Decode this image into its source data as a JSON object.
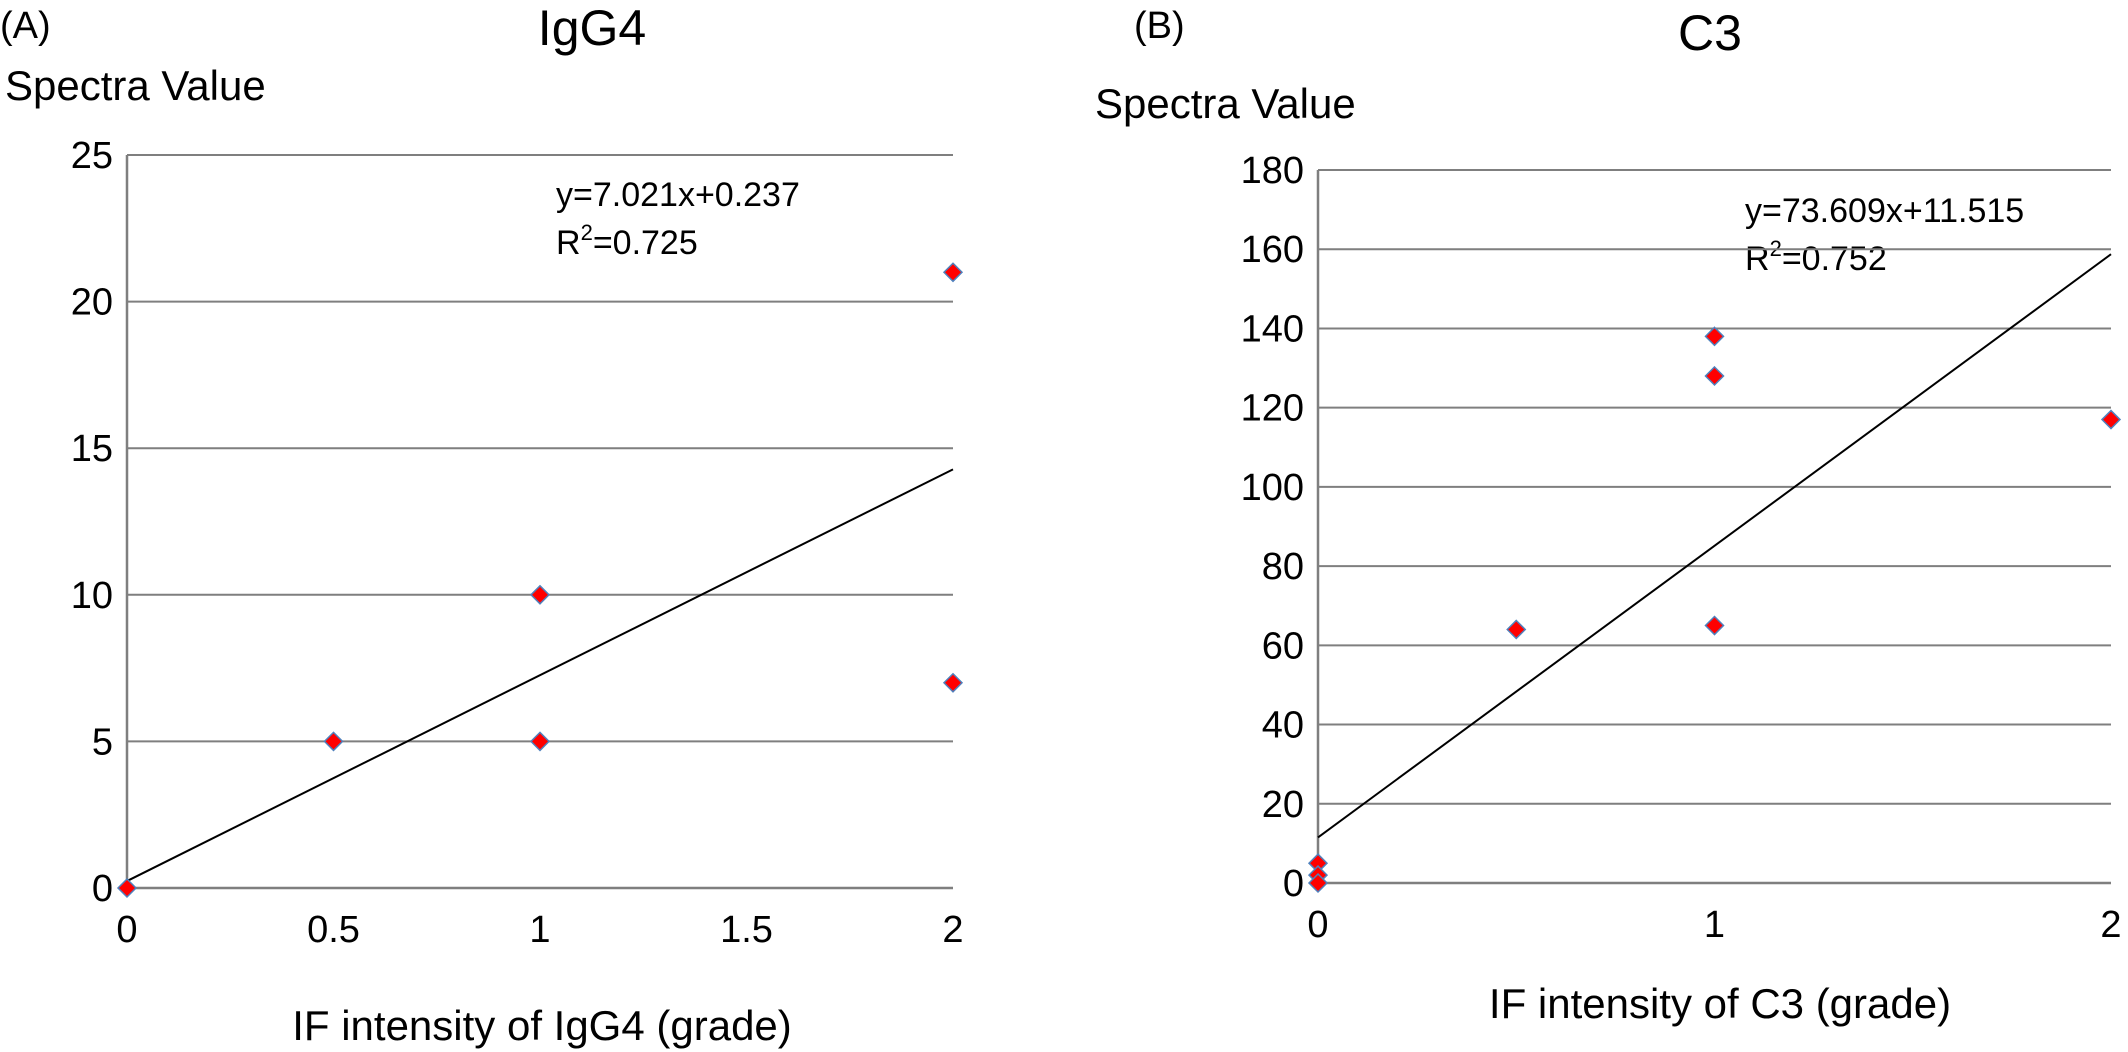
{
  "chart_data": [
    {
      "type": "scatter",
      "panel_label": "(A)",
      "title": "IgG4",
      "ylabel": "Spectra Value",
      "xlabel": "IF intensity of IgG4 (grade)",
      "xlim": [
        0,
        2
      ],
      "ylim": [
        0,
        25
      ],
      "xticks": [
        "0",
        "0.5",
        "1",
        "1.5",
        "2"
      ],
      "yticks": [
        "0",
        "5",
        "10",
        "15",
        "20",
        "25"
      ],
      "grid": "horizontal",
      "marker_color": "#ff0000",
      "marker_edge_color": "#4f81bd",
      "points": [
        {
          "x": 0,
          "y": 0
        },
        {
          "x": 0.5,
          "y": 5
        },
        {
          "x": 1,
          "y": 10
        },
        {
          "x": 1,
          "y": 5
        },
        {
          "x": 2,
          "y": 21
        },
        {
          "x": 2,
          "y": 7
        }
      ],
      "trendline": {
        "slope": 7.021,
        "intercept": 0.237
      },
      "annotation": {
        "equation": "y=7.021x+0.237",
        "r2_prefix": "R",
        "r2_sup": "2",
        "r2_value": "=0.725"
      }
    },
    {
      "type": "scatter",
      "panel_label": "(B)",
      "title": "C3",
      "ylabel": "Spectra Value",
      "xlabel": "IF intensity of C3 (grade)",
      "xlim": [
        0,
        2
      ],
      "ylim": [
        0,
        180
      ],
      "xticks": [
        "0",
        "1",
        "2"
      ],
      "yticks": [
        "0",
        "20",
        "40",
        "60",
        "80",
        "100",
        "120",
        "140",
        "160",
        "180"
      ],
      "grid": "horizontal",
      "marker_color": "#ff0000",
      "marker_edge_color": "#4f81bd",
      "points": [
        {
          "x": 0,
          "y": 5
        },
        {
          "x": 0,
          "y": 2
        },
        {
          "x": 0,
          "y": 0
        },
        {
          "x": 0.5,
          "y": 64
        },
        {
          "x": 1,
          "y": 138
        },
        {
          "x": 1,
          "y": 128
        },
        {
          "x": 1,
          "y": 65
        },
        {
          "x": 2,
          "y": 117
        }
      ],
      "trendline": {
        "slope": 73.609,
        "intercept": 11.515
      },
      "annotation": {
        "equation": "y=73.609x+11.515",
        "r2_prefix": "R",
        "r2_sup": "2",
        "r2_value": "=0.752"
      }
    }
  ]
}
